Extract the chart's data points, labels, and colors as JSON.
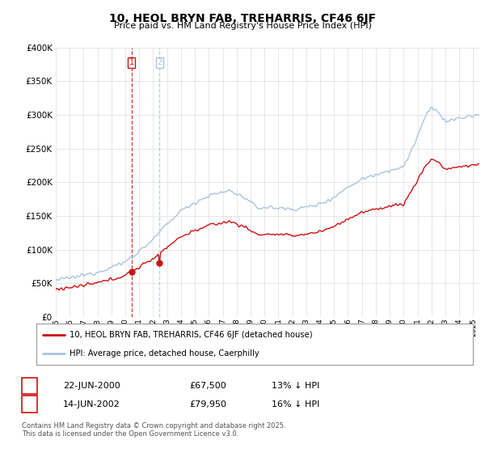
{
  "title": "10, HEOL BRYN FAB, TREHARRIS, CF46 6JF",
  "subtitle": "Price paid vs. HM Land Registry's House Price Index (HPI)",
  "legend_line1": "10, HEOL BRYN FAB, TREHARRIS, CF46 6JF (detached house)",
  "legend_line2": "HPI: Average price, detached house, Caerphilly",
  "transaction1_date": "22-JUN-2000",
  "transaction1_price": "£67,500",
  "transaction1_hpi": "13% ↓ HPI",
  "transaction2_date": "14-JUN-2002",
  "transaction2_price": "£79,950",
  "transaction2_hpi": "16% ↓ HPI",
  "footer": "Contains HM Land Registry data © Crown copyright and database right 2025.\nThis data is licensed under the Open Government Licence v3.0.",
  "hpi_color": "#aac4df",
  "price_color": "#cc1111",
  "vline1_color": "#cc1111",
  "vline2_color": "#aac4df",
  "ylim": [
    0,
    400000
  ],
  "yticks": [
    0,
    50000,
    100000,
    150000,
    200000,
    250000,
    300000,
    350000,
    400000
  ],
  "background_color": "#ffffff",
  "grid_color": "#dddddd",
  "xmin": 1995,
  "xmax": 2025.5
}
